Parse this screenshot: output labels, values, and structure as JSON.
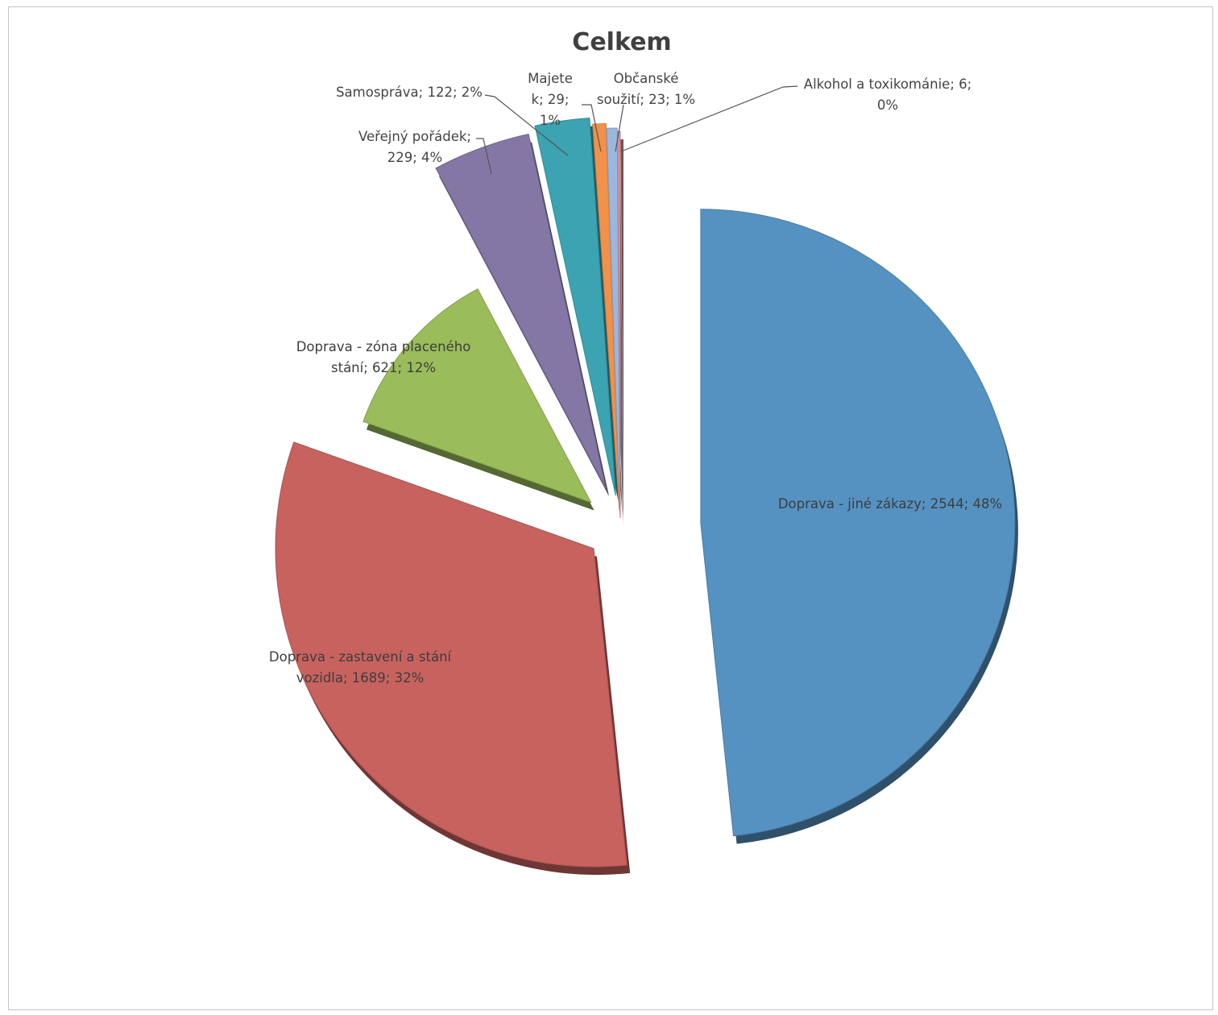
{
  "chart_data": {
    "type": "pie",
    "title": "Celkem",
    "slices": [
      {
        "category": "Doprava - jiné zákazy",
        "value": 2544,
        "percent": "48%",
        "color": "#5592c2",
        "label_lines": [
          "Doprava - jiné zákazy; 2544; 48%"
        ]
      },
      {
        "category": "Doprava - zastavení a stání vozidla",
        "value": 1689,
        "percent": "32%",
        "color": "#c8625f",
        "label_lines": [
          "Doprava - zastavení a stání",
          "vozidla; 1689; 32%"
        ]
      },
      {
        "category": "Doprava - zóna placeného stání",
        "value": 621,
        "percent": "12%",
        "color": "#9bbc5a",
        "label_lines": [
          "Doprava - zóna placeného",
          "stání; 621; 12%"
        ]
      },
      {
        "category": "Veřejný pořádek",
        "value": 229,
        "percent": "4%",
        "color": "#8577a5",
        "label_lines": [
          "Veřejný pořádek;",
          "229; 4%"
        ]
      },
      {
        "category": "Samospráva",
        "value": 122,
        "percent": "2%",
        "color": "#3ba3b1",
        "label_lines": [
          "Samospráva; 122; 2%"
        ]
      },
      {
        "category": "Majetek",
        "value": 29,
        "percent": "1%",
        "color": "#f2914a",
        "label_lines": [
          "Majete",
          "k; 29;",
          "1%"
        ]
      },
      {
        "category": "Občanské soužití",
        "value": 23,
        "percent": "1%",
        "color": "#9ab7e0",
        "label_lines": [
          "Občanské",
          "soužití; 23; 1%"
        ]
      },
      {
        "category": "Alkohol a toxikománie",
        "value": 6,
        "percent": "0%",
        "color": "#d9939a",
        "label_lines": [
          "Alkohol a toxikománie; 6;",
          "0%"
        ]
      }
    ]
  }
}
